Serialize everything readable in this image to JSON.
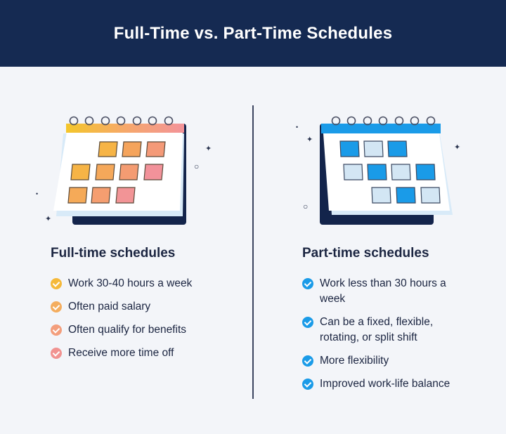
{
  "title": "Full-Time vs. Part-Time Schedules",
  "colors": {
    "header_bg": "#152a52",
    "background": "#f3f5f9",
    "text": "#1b2541",
    "blue": "#1a9be8",
    "light_blue": "#d3e6f4"
  },
  "full_time": {
    "heading": "Full-time schedules",
    "icon": "calendar-icon",
    "items": [
      {
        "text": "Work 30-40 hours a week",
        "check_color": "#f5b93a"
      },
      {
        "text": "Often paid salary",
        "check_color": "#f4ad5e"
      },
      {
        "text": "Often qualify for benefits",
        "check_color": "#f39e7c"
      },
      {
        "text": "Receive more time off",
        "check_color": "#f19391"
      }
    ]
  },
  "part_time": {
    "heading": "Part-time schedules",
    "icon": "calendar-icon",
    "items": [
      {
        "text": "Work less than 30 hours a week",
        "check_color": "#1a9be8"
      },
      {
        "text": "Can be a fixed, flexible, rotating, or split shift",
        "check_color": "#1a9be8"
      },
      {
        "text": "More flexibility",
        "check_color": "#1a9be8"
      },
      {
        "text": "Improved work-life balance",
        "check_color": "#1a9be8"
      }
    ]
  }
}
